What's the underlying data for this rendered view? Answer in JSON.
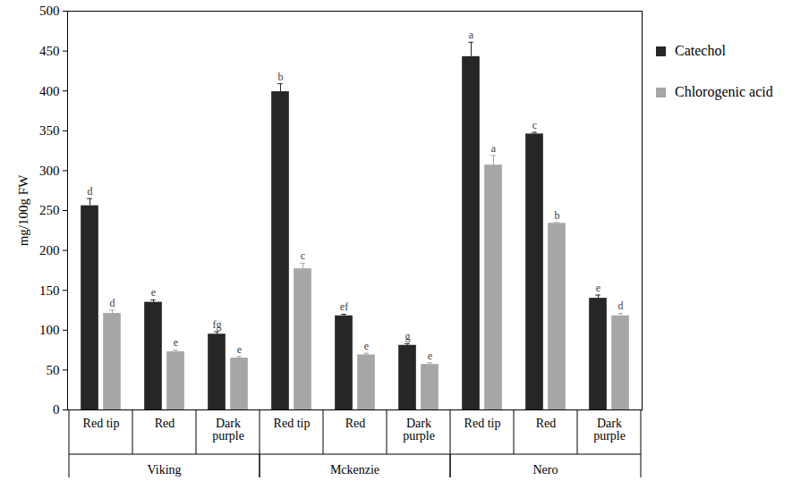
{
  "chart_data": {
    "type": "bar",
    "ylabel": "mg/100g FW",
    "categories": [
      "Red tip",
      "Red",
      "Dark purple",
      "Red tip",
      "Red",
      "Dark purple",
      "Red tip",
      "Red",
      "Dark purple"
    ],
    "groups": [
      "Viking",
      "Viking",
      "Viking",
      "Mckenzie",
      "Mckenzie",
      "Mckenzie",
      "Nero",
      "Nero",
      "Nero"
    ],
    "ylim": [
      0,
      500
    ],
    "yticks": [
      0,
      50,
      100,
      150,
      200,
      250,
      300,
      350,
      400,
      450,
      500
    ],
    "legend": "right",
    "series": [
      {
        "name": "Catechol",
        "color": "#262626",
        "values": [
          256,
          135,
          95,
          399,
          118,
          81,
          443,
          346,
          140
        ],
        "errors": [
          9,
          3,
          3,
          10,
          2,
          2,
          18,
          2,
          4
        ],
        "letters": [
          "d",
          "e",
          "fg",
          "b",
          "ef",
          "g",
          "a",
          "c",
          "e"
        ]
      },
      {
        "name": "Chlorogenic acid",
        "color": "#a6a6a6",
        "values": [
          121,
          73,
          65,
          177,
          69,
          57,
          307,
          234,
          118
        ],
        "errors": [
          4,
          2,
          2,
          7,
          2,
          2,
          12,
          1,
          3
        ],
        "letters": [
          "d",
          "e",
          "e",
          "c",
          "e",
          "e",
          "a",
          "b",
          "d"
        ]
      }
    ]
  }
}
